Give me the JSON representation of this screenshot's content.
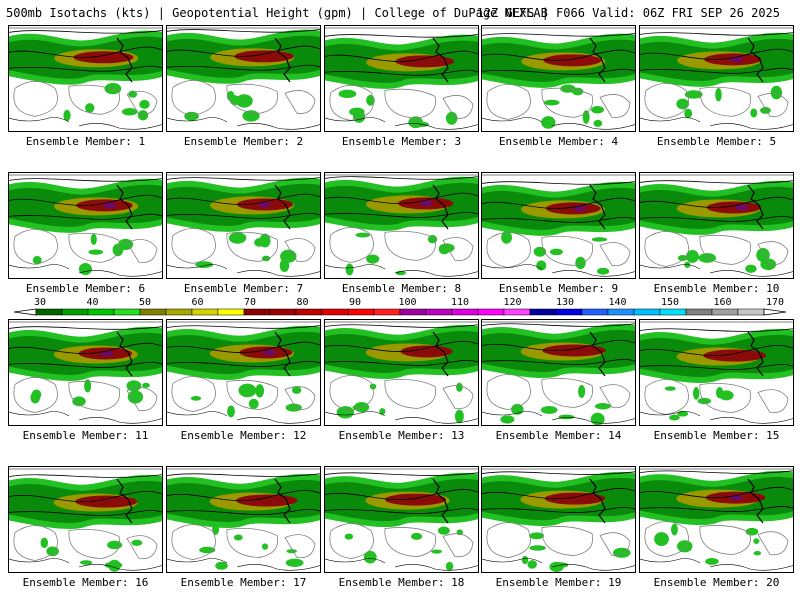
{
  "header": {
    "title_left": "500mb Isotachs (kts) | Geopotential Height (gpm) | College of DuPage NEXLAB",
    "title_right": "12Z GEFS | F066 Valid: 06Z FRI SEP 26 2025"
  },
  "members": [
    {
      "label": "Ensemble Member: 1"
    },
    {
      "label": "Ensemble Member: 2"
    },
    {
      "label": "Ensemble Member: 3"
    },
    {
      "label": "Ensemble Member: 4"
    },
    {
      "label": "Ensemble Member: 5"
    },
    {
      "label": "Ensemble Member: 6"
    },
    {
      "label": "Ensemble Member: 7"
    },
    {
      "label": "Ensemble Member: 8"
    },
    {
      "label": "Ensemble Member: 9"
    },
    {
      "label": "Ensemble Member: 10"
    },
    {
      "label": "Ensemble Member: 11"
    },
    {
      "label": "Ensemble Member: 12"
    },
    {
      "label": "Ensemble Member: 13"
    },
    {
      "label": "Ensemble Member: 14"
    },
    {
      "label": "Ensemble Member: 15"
    },
    {
      "label": "Ensemble Member: 16"
    },
    {
      "label": "Ensemble Member: 17"
    },
    {
      "label": "Ensemble Member: 18"
    },
    {
      "label": "Ensemble Member: 19"
    },
    {
      "label": "Ensemble Member: 20"
    }
  ],
  "colorbar": {
    "tick_labels": [
      "30",
      "40",
      "50",
      "60",
      "70",
      "80",
      "90",
      "100",
      "110",
      "120",
      "130",
      "140",
      "150",
      "160",
      "170"
    ],
    "colors": [
      "#006400",
      "#00a000",
      "#00c800",
      "#22e022",
      "#808000",
      "#a8a800",
      "#d4d400",
      "#ffff00",
      "#8b0000",
      "#a00000",
      "#c00000",
      "#e00000",
      "#ff0000",
      "#ff2020",
      "#a000a0",
      "#c000c0",
      "#e000e0",
      "#ff00ff",
      "#ff40ff",
      "#0000a0",
      "#0000e0",
      "#2060ff",
      "#2090ff",
      "#00c0ff",
      "#00e0ff",
      "#808080",
      "#a0a0a0",
      "#c8c8c8"
    ]
  },
  "palette": {
    "jet_green_dark": "#0a8a0a",
    "jet_green": "#22c022",
    "jet_olive": "#9a9a00",
    "jet_core": "#8b0a0a",
    "jet_purple": "#6a0a6a",
    "height_contour": "#808080",
    "coastline": "#000000"
  }
}
